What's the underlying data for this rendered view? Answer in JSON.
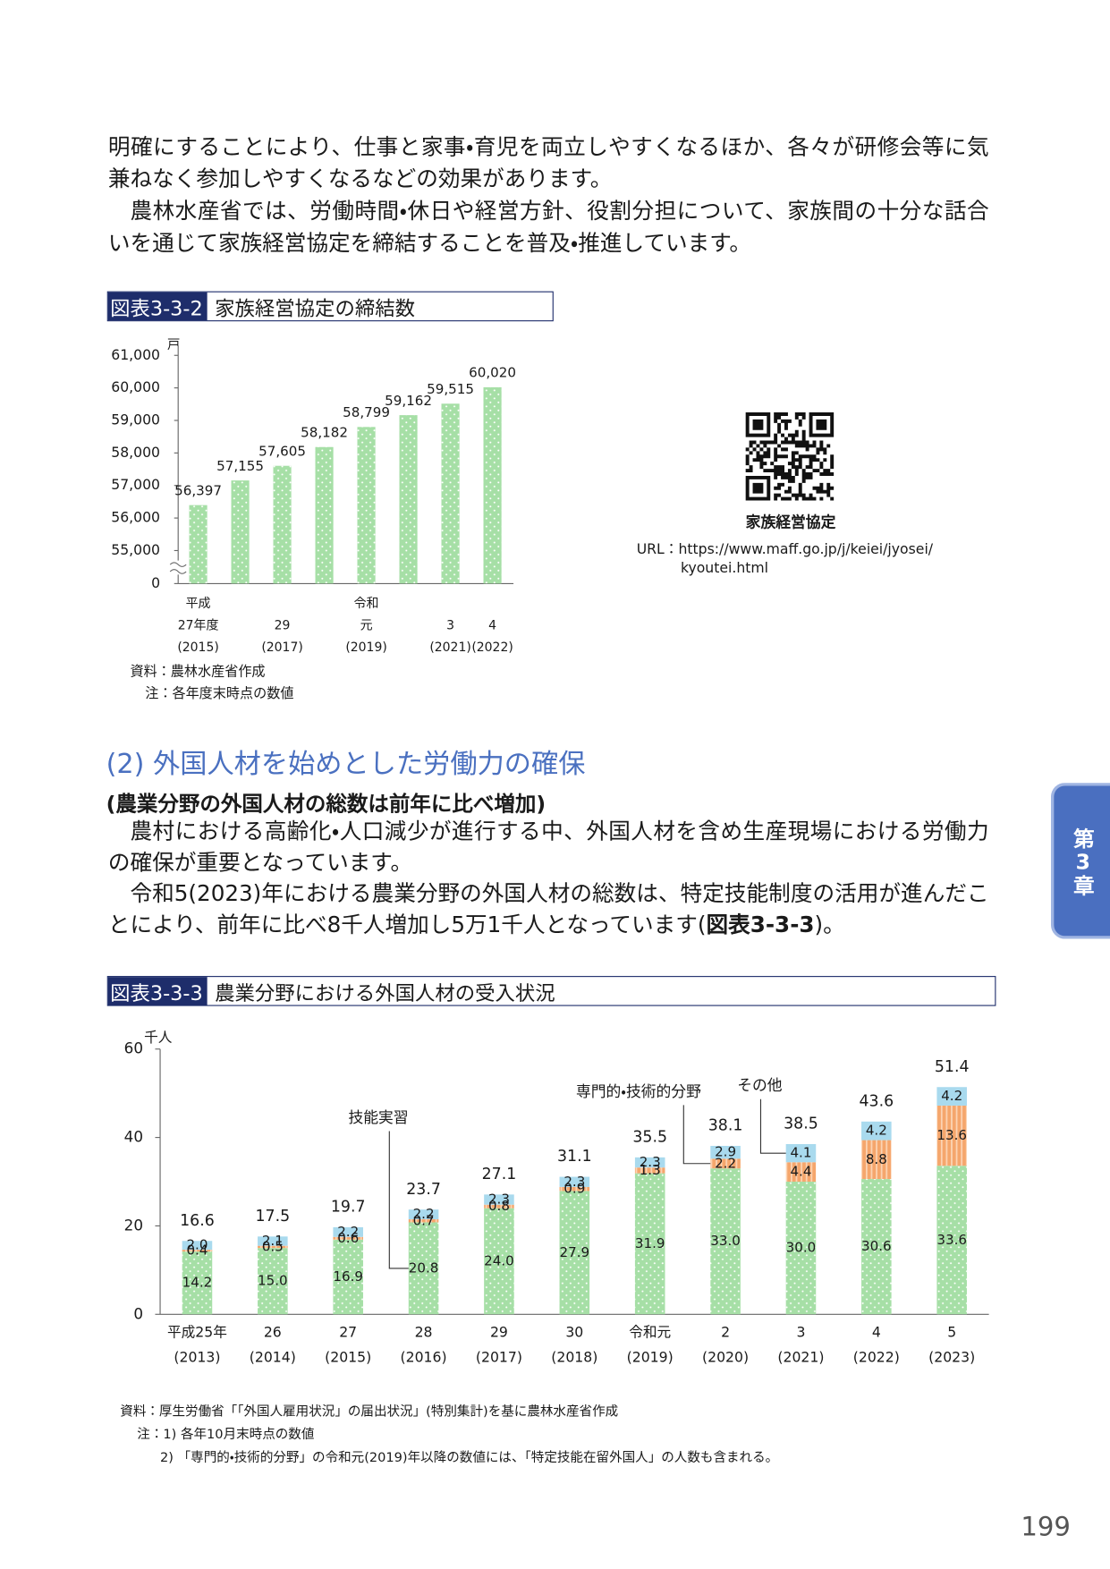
{
  "intro_paragraphs": [
    "明確にすることにより、仕事と家事・育児を両立しやすくなるほか、各々が研修会等に気兼ねなく参加しやすくなるなどの効果があります。",
    "農林水産省では、労働時間・休日や経営方針、役割分担について、家族間の十分な話合いを通じて家族経営協定を締結することを普及・推進しています。"
  ],
  "figure_3_3_2": {
    "label": "図表3-3-2",
    "title": "家族経営協定の締結数",
    "source": "資料：農林水産省作成",
    "note": "注：各年度末時点の数値"
  },
  "qr": {
    "caption": "家族経営協定",
    "url_lines": [
      "URL：https://www.maff.go.jp/j/keiei/jyosei/",
      "kyoutei.html"
    ]
  },
  "section": {
    "heading": "(2) 外国人材を始めとした労働力の確保",
    "subheading": "(農業分野の外国人材の総数は前年に比べ増加)",
    "paragraph1": "農村における高齢化・人口減少が進行する中、外国人材を含め生産現場における労働力の確保が重要となっています。",
    "paragraph2": {
      "before": "令和5(2023)年における農業分野の外国人材の総数は、特定技能制度の活用が進んだことにより、前年に比べ8千人増加し5万1千人となっています(",
      "bold": "図表3-3-3",
      "after": ")。"
    }
  },
  "figure_3_3_3": {
    "label": "図表3-3-3",
    "title": "農業分野における外国人材の受入状況",
    "source": "資料：厚生労働省「「外国人雇用状況」の届出状況」(特別集計)を基に農林水産省作成",
    "notes": [
      "注：1) 各年10月末時点の数値",
      "2) 「専門的・技術的分野」の令和元(2019)年以降の数値には、「特定技能在留外国人」の人数も含まれる。"
    ]
  },
  "chapter_tab": "第3章",
  "page_number": "199",
  "chart_data": [
    {
      "type": "bar",
      "unit": "戸",
      "categories": [
        "平成\n27年度\n(2015)",
        null,
        "29\n(2017)",
        null,
        "令和\n元\n(2019)",
        null,
        "3\n(2021)",
        "4\n(2022)"
      ],
      "values": [
        56397,
        57155,
        57605,
        58182,
        58799,
        59162,
        59515,
        60020
      ],
      "value_labels": [
        "56,397",
        "57,155",
        "57,605",
        "58,182",
        "58,799",
        "59,162",
        "59,515",
        "60,020"
      ],
      "color": "#a6dfa6",
      "pattern": "dots",
      "axis_break": true,
      "ylim": [
        55000,
        61000
      ],
      "yticks": [
        0,
        {
          "value": 55000,
          "label": "55,000"
        },
        {
          "value": 56000,
          "label": "56,000"
        },
        {
          "value": 57000,
          "label": "57,000"
        },
        {
          "value": 58000,
          "label": "58,000"
        },
        {
          "value": 59000,
          "label": "59,000"
        },
        {
          "value": 60000,
          "label": "60,000"
        },
        {
          "value": 61000,
          "label": "61,000"
        }
      ]
    },
    {
      "type": "stacked_bar",
      "unit": "千人",
      "categories": [
        "平成25年\n(2013)",
        "26\n(2014)",
        "27\n(2015)",
        "28\n(2016)",
        "29\n(2017)",
        "30\n(2018)",
        "令和元\n(2019)",
        "2\n(2020)",
        "3\n(2021)",
        "4\n(2022)",
        "5\n(2023)"
      ],
      "series": [
        {
          "name": "技能実習",
          "color": "#a6dfa6",
          "pattern": "dots",
          "values": [
            14.2,
            15.0,
            16.9,
            20.8,
            24.0,
            27.9,
            31.9,
            33.0,
            30.0,
            30.6,
            33.6
          ],
          "value_labels": [
            "14.2",
            "15.0",
            "16.9",
            "20.8",
            "24.0",
            "27.9",
            "31.9",
            "33.0",
            "30.0",
            "30.6",
            "33.6"
          ]
        },
        {
          "name": "専門的・技術的分野",
          "color": "#f5a66c",
          "pattern": "stripes",
          "values": [
            0.4,
            0.5,
            0.6,
            0.7,
            0.8,
            0.9,
            1.3,
            2.2,
            4.4,
            8.8,
            13.6
          ]
        },
        {
          "name": "その他",
          "color": "#a9daee",
          "pattern": "none",
          "values": [
            2.0,
            2.1,
            2.2,
            2.2,
            2.3,
            2.3,
            2.3,
            2.9,
            4.1,
            4.2,
            4.2
          ],
          "value_labels": [
            "2.0",
            "2.1",
            "2.2",
            "2.2",
            "2.3",
            "2.3",
            "2.3",
            "2.9",
            "4.1",
            "4.2",
            "4.2"
          ]
        }
      ],
      "totals": [
        16.6,
        17.5,
        19.7,
        23.7,
        27.1,
        31.1,
        35.5,
        38.1,
        38.5,
        43.6,
        51.4
      ],
      "ylim": [
        0,
        60
      ],
      "yticks": [
        0,
        20,
        40,
        60
      ]
    }
  ]
}
